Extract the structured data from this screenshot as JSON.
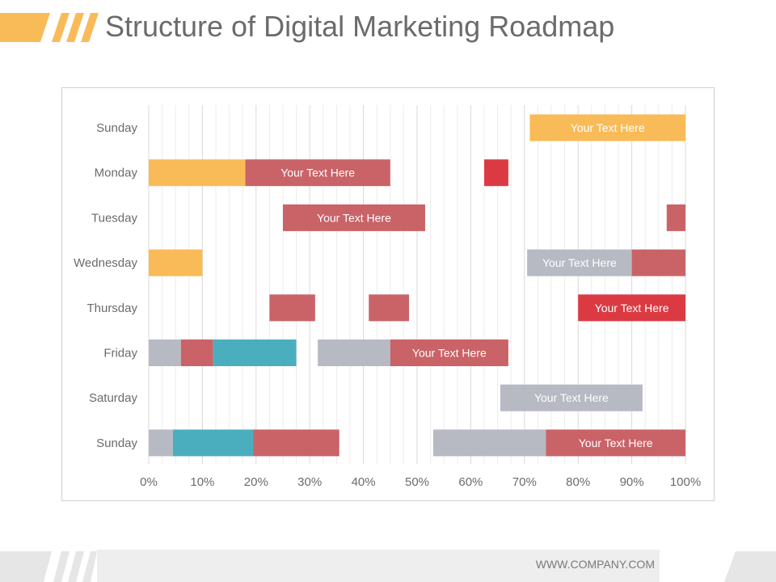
{
  "page": {
    "title": "Structure of Digital Marketing Roadmap",
    "footer_url": "WWW.COMPANY.COM"
  },
  "colors": {
    "yellow": "#f9bb58",
    "red": "#c96367",
    "bright_red": "#dc3a42",
    "teal": "#4aaebe",
    "gray": "#b7bac3",
    "title": "#6b6b6b",
    "axis_text": "#6b6b6b"
  },
  "chart_data": {
    "type": "bar",
    "orientation": "horizontal-stacked",
    "categories": [
      "Sunday",
      "Monday",
      "Tuesday",
      "Wednesday",
      "Thursday",
      "Friday",
      "Saturday",
      "Sunday"
    ],
    "xlim": [
      0,
      100
    ],
    "x_ticks": [
      "0%",
      "10%",
      "20%",
      "30%",
      "40%",
      "50%",
      "60%",
      "70%",
      "80%",
      "90%",
      "100%"
    ],
    "grid": true,
    "rows": [
      [
        {
          "start": 71,
          "end": 100,
          "color": "yellow",
          "label": "Your Text Here"
        }
      ],
      [
        {
          "start": 0,
          "end": 18,
          "color": "yellow",
          "label": ""
        },
        {
          "start": 18,
          "end": 45,
          "color": "red",
          "label": "Your Text Here"
        },
        {
          "start": 62.5,
          "end": 67,
          "color": "bright_red",
          "label": ""
        }
      ],
      [
        {
          "start": 25,
          "end": 51.5,
          "color": "red",
          "label": "Your Text Here"
        },
        {
          "start": 96.5,
          "end": 100,
          "color": "red",
          "label": ""
        }
      ],
      [
        {
          "start": 0,
          "end": 10,
          "color": "yellow",
          "label": ""
        },
        {
          "start": 70.5,
          "end": 90,
          "color": "gray",
          "label": "Your Text Here"
        },
        {
          "start": 90,
          "end": 100,
          "color": "red",
          "label": ""
        }
      ],
      [
        {
          "start": 22.5,
          "end": 31,
          "color": "red",
          "label": ""
        },
        {
          "start": 41,
          "end": 48.5,
          "color": "red",
          "label": ""
        },
        {
          "start": 80,
          "end": 100,
          "color": "bright_red",
          "label": "Your Text Here"
        }
      ],
      [
        {
          "start": 0,
          "end": 6,
          "color": "gray",
          "label": ""
        },
        {
          "start": 6,
          "end": 12,
          "color": "red",
          "label": ""
        },
        {
          "start": 12,
          "end": 27.5,
          "color": "teal",
          "label": ""
        },
        {
          "start": 31.5,
          "end": 45,
          "color": "gray",
          "label": ""
        },
        {
          "start": 45,
          "end": 67,
          "color": "red",
          "label": "Your Text Here"
        }
      ],
      [
        {
          "start": 65.5,
          "end": 92,
          "color": "gray",
          "label": "Your Text Here"
        }
      ],
      [
        {
          "start": 0,
          "end": 4.5,
          "color": "gray",
          "label": ""
        },
        {
          "start": 4.5,
          "end": 19.5,
          "color": "teal",
          "label": ""
        },
        {
          "start": 19.5,
          "end": 35.5,
          "color": "red",
          "label": ""
        },
        {
          "start": 53,
          "end": 74,
          "color": "gray",
          "label": ""
        },
        {
          "start": 74,
          "end": 100,
          "color": "red",
          "label": "Your Text Here"
        }
      ]
    ]
  }
}
